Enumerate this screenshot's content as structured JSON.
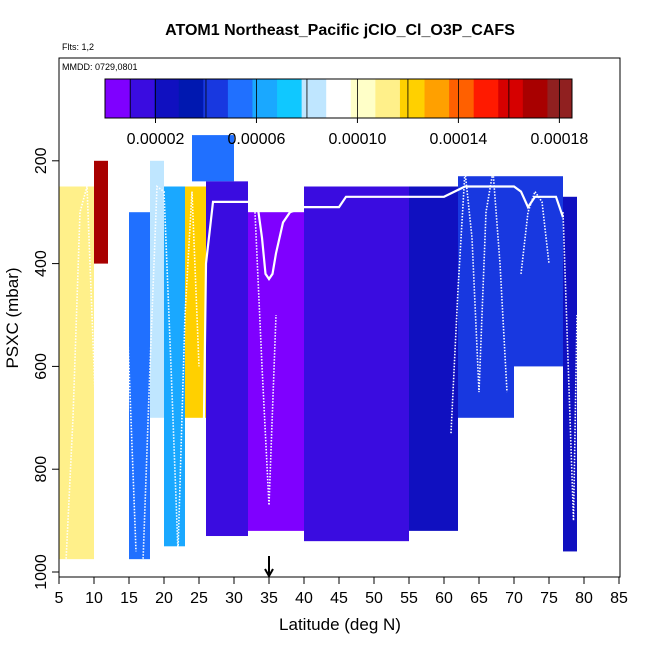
{
  "chart_data": {
    "type": "heatmap",
    "title": "ATOM1 Northeast_Pacific jClO_Cl_O3P_CAFS",
    "flights_label": "Flts: 1,2",
    "dates_label": "MMDD: 0729,0801",
    "xlabel": "Latitude (deg N)",
    "ylabel": "PSXC (mbar)",
    "xlim": [
      5,
      85
    ],
    "ylim": [
      1000,
      0
    ],
    "x_ticks": [
      "5",
      "10",
      "15",
      "20",
      "25",
      "30",
      "35",
      "40",
      "45",
      "50",
      "55",
      "60",
      "65",
      "70",
      "75",
      "80",
      "85"
    ],
    "y_ticks": [
      "200",
      "400",
      "600",
      "800",
      "1000"
    ],
    "colorbar": {
      "range": [
        0.0,
        0.000185
      ],
      "tick_values": [
        2e-05,
        6e-05,
        0.0001,
        0.00014,
        0.00018
      ],
      "tick_labels": [
        "0.00002",
        "0.00006",
        "0.00010",
        "0.00014",
        "0.00018"
      ],
      "colors": [
        "#7f00ff",
        "#3a0ce0",
        "#1010c0",
        "#0018b0",
        "#1838e0",
        "#2070ff",
        "#1aa8ff",
        "#10c8ff",
        "#bfe6ff",
        "#ffffff",
        "#ffffc8",
        "#fff08a",
        "#ffd000",
        "#ffa000",
        "#ff6000",
        "#ff1a00",
        "#d60000",
        "#a80000",
        "#902020"
      ],
      "divider_values": [
        1e-05,
        2e-05,
        4e-05,
        6e-05,
        8e-05,
        0.0001,
        0.00012,
        0.00014,
        0.00016,
        0.00018
      ]
    },
    "marker": {
      "latitude": 35,
      "pressure": 1000,
      "symbol": "arrow"
    },
    "regions": [
      {
        "lat": [
          5,
          10
        ],
        "p": [
          250,
          975
        ],
        "value": 0.000108
      },
      {
        "lat": [
          10,
          12
        ],
        "p": [
          200,
          400
        ],
        "value": 0.00017
      },
      {
        "lat": [
          12,
          15
        ],
        "p": [
          200,
          650
        ],
        "value": 9.5e-05
      },
      {
        "lat": [
          15,
          18
        ],
        "p": [
          300,
          975
        ],
        "value": 5.8e-05
      },
      {
        "lat": [
          18,
          20
        ],
        "p": [
          200,
          700
        ],
        "value": 8.5e-05
      },
      {
        "lat": [
          20,
          23
        ],
        "p": [
          250,
          950
        ],
        "value": 6e-05
      },
      {
        "lat": [
          23,
          26
        ],
        "p": [
          250,
          700
        ],
        "value": 0.000118
      },
      {
        "lat": [
          24,
          30
        ],
        "p": [
          150,
          240
        ],
        "value": 5.8e-05
      },
      {
        "lat": [
          26,
          32
        ],
        "p": [
          240,
          930
        ],
        "value": 1.8e-05
      },
      {
        "lat": [
          32,
          40
        ],
        "p": [
          300,
          920
        ],
        "value": 8e-06
      },
      {
        "lat": [
          40,
          55
        ],
        "p": [
          250,
          940
        ],
        "value": 1.8e-05
      },
      {
        "lat": [
          55,
          62
        ],
        "p": [
          250,
          920
        ],
        "value": 2.6e-05
      },
      {
        "lat": [
          62,
          70
        ],
        "p": [
          230,
          700
        ],
        "value": 4.5e-05
      },
      {
        "lat": [
          70,
          77
        ],
        "p": [
          230,
          600
        ],
        "value": 4e-05
      },
      {
        "lat": [
          77,
          79
        ],
        "p": [
          270,
          960
        ],
        "value": 2e-05
      }
    ],
    "flight_profiles": [
      {
        "name": "upper-track",
        "style": "solid",
        "lat": [
          25.5,
          26,
          27,
          29,
          31,
          32,
          33,
          33.5,
          34,
          34.5,
          35,
          35.5,
          36,
          37,
          38,
          40,
          45,
          46,
          50,
          55,
          60,
          63,
          66,
          68,
          70,
          71,
          72,
          73,
          75,
          76,
          77
        ],
        "p": [
          920,
          400,
          280,
          280,
          280,
          280,
          280,
          300,
          350,
          420,
          430,
          420,
          380,
          320,
          300,
          290,
          290,
          270,
          270,
          270,
          270,
          250,
          250,
          250,
          250,
          260,
          290,
          270,
          270,
          270,
          310
        ]
      },
      {
        "name": "dive-1",
        "style": "dotted",
        "lat": [
          6,
          7,
          8,
          9,
          10,
          11
        ],
        "p": [
          980,
          700,
          300,
          250,
          600,
          980
        ]
      },
      {
        "name": "dive-2",
        "style": "dotted",
        "lat": [
          11,
          12,
          13,
          14,
          15,
          16
        ],
        "p": [
          980,
          700,
          250,
          250,
          600,
          960
        ]
      },
      {
        "name": "dive-3",
        "style": "dotted",
        "lat": [
          17,
          18,
          19,
          20,
          21,
          22
        ],
        "p": [
          980,
          600,
          250,
          260,
          600,
          960
        ]
      },
      {
        "name": "dive-4",
        "style": "dotted",
        "lat": [
          22,
          23,
          24,
          25
        ],
        "p": [
          960,
          500,
          260,
          600
        ]
      },
      {
        "name": "dive-5",
        "style": "dotted",
        "lat": [
          33,
          34,
          35,
          36
        ],
        "p": [
          300,
          600,
          870,
          500
        ]
      },
      {
        "name": "dive-6",
        "style": "dotted",
        "lat": [
          61,
          62,
          63,
          64,
          65,
          66,
          67,
          68,
          69
        ],
        "p": [
          730,
          450,
          220,
          350,
          650,
          300,
          220,
          400,
          650
        ]
      },
      {
        "name": "dive-7",
        "style": "dotted",
        "lat": [
          71,
          72,
          73,
          74,
          75
        ],
        "p": [
          420,
          300,
          260,
          280,
          400
        ]
      },
      {
        "name": "dive-8",
        "style": "dotted",
        "lat": [
          77,
          78,
          78.5,
          79
        ],
        "p": [
          300,
          700,
          900,
          500
        ]
      }
    ]
  }
}
